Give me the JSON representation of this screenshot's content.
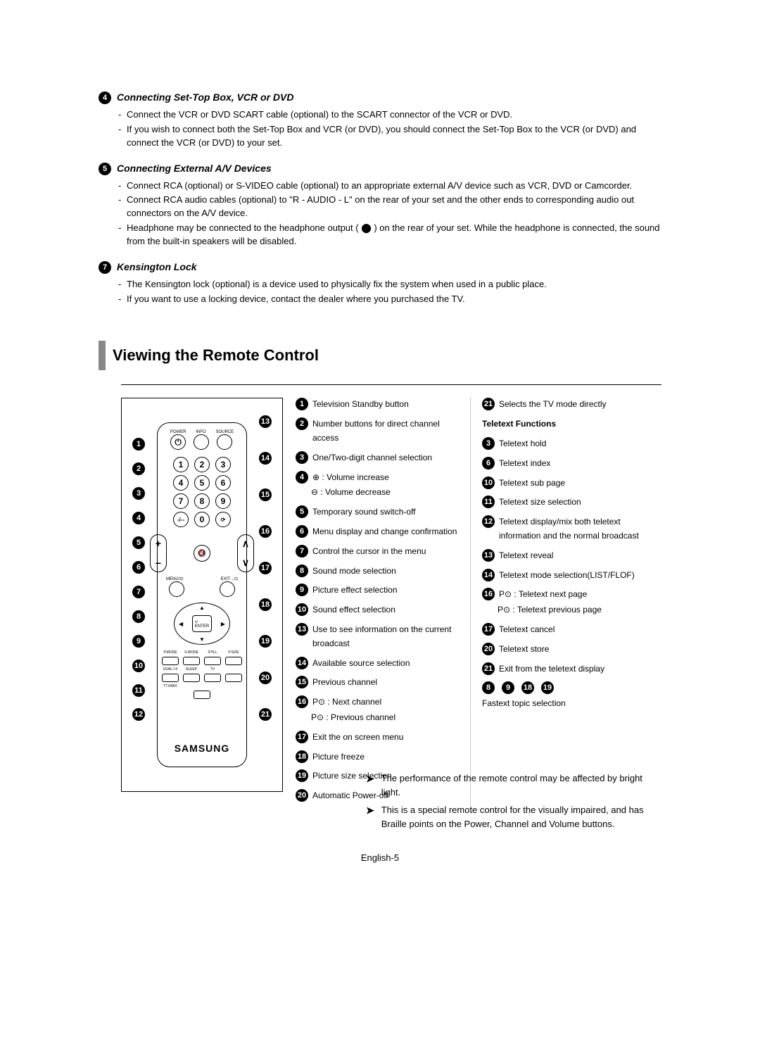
{
  "sections": [
    {
      "num": "4",
      "title": "Connecting Set-Top Box, VCR or DVD",
      "items": [
        "Connect the VCR or DVD SCART cable (optional) to the SCART connector of the VCR or DVD.",
        "If you wish to connect both the Set-Top Box and VCR (or DVD), you should connect the Set-Top Box to the VCR (or DVD) and connect the VCR (or DVD) to your set."
      ]
    },
    {
      "num": "5",
      "title": "Connecting External A/V Devices",
      "items": [
        "Connect RCA (optional) or S-VIDEO cable (optional) to an appropriate external A/V device such as VCR, DVD or Camcorder.",
        "Connect RCA audio cables (optional) to \"R - AUDIO - L\" on the rear of your set and the other ends to corresponding audio out connectors on the A/V device.",
        "Headphone may be connected to the headphone output ( ⬤ ) on the rear of your set. While the headphone is connected, the sound from the built-in speakers will be disabled."
      ]
    },
    {
      "num": "7",
      "title": "Kensington Lock",
      "items": [
        "The Kensington lock (optional) is a device used to physically fix the system when used in a public place.",
        "If you want to use a locking device, contact the dealer where you purchased the TV."
      ]
    }
  ],
  "heading": "Viewing the Remote Control",
  "remote": {
    "brand": "SAMSUNG",
    "left_callouts": [
      "1",
      "2",
      "3",
      "4",
      "5",
      "6",
      "7",
      "8",
      "9",
      "10",
      "11",
      "12"
    ],
    "right_callouts": [
      "13",
      "14",
      "15",
      "16",
      "17",
      "18",
      "19",
      "20",
      "21"
    ]
  },
  "col1": [
    {
      "n": "1",
      "t": "Television Standby button"
    },
    {
      "n": "2",
      "t": "Number buttons for direct channel access"
    },
    {
      "n": "3",
      "t": "One/Two-digit channel selection"
    },
    {
      "n": "4",
      "t": "⊕ : Volume increase",
      "sub": "⊖ : Volume decrease"
    },
    {
      "n": "5",
      "t": "Temporary sound switch-off"
    },
    {
      "n": "6",
      "t": "Menu display and  change confirmation"
    },
    {
      "n": "7",
      "t": "Control the cursor in the menu"
    },
    {
      "n": "8",
      "t": "Sound mode selection"
    },
    {
      "n": "9",
      "t": "Picture effect selection"
    },
    {
      "n": "10",
      "t": "Sound effect selection"
    },
    {
      "n": "13",
      "t": "Use to see information on the current broadcast"
    },
    {
      "n": "14",
      "t": "Available source selection"
    },
    {
      "n": "15",
      "t": "Previous channel"
    },
    {
      "n": "16",
      "t": "P⊙ : Next channel",
      "sub": "P⊙ : Previous channel"
    },
    {
      "n": "17",
      "t": "Exit the on screen menu"
    },
    {
      "n": "18",
      "t": "Picture freeze"
    },
    {
      "n": "19",
      "t": "Picture size selection"
    },
    {
      "n": "20",
      "t": "Automatic Power-off"
    }
  ],
  "col2_top": {
    "n": "21",
    "t": "Selects the TV mode directly"
  },
  "teletext_header": "Teletext Functions",
  "col2": [
    {
      "n": "3",
      "t": "Teletext hold"
    },
    {
      "n": "6",
      "t": "Teletext index"
    },
    {
      "n": "10",
      "t": "Teletext sub page"
    },
    {
      "n": "11",
      "t": "Teletext size selection"
    },
    {
      "n": "12",
      "t": "Teletext display/mix both teletext information and the normal broadcast"
    },
    {
      "n": "13",
      "t": "Teletext reveal"
    },
    {
      "n": "14",
      "t": "Teletext mode selection(LIST/FLOF)"
    },
    {
      "n": "16",
      "t": "P⊙ : Teletext next page",
      "sub": "P⊙ : Teletext previous page"
    },
    {
      "n": "17",
      "t": "Teletext cancel"
    },
    {
      "n": "20",
      "t": "Teletext store"
    },
    {
      "n": "21",
      "t": "Exit from the teletext display"
    }
  ],
  "fastext_icons": [
    "8",
    "9",
    "18",
    "19"
  ],
  "fastext_label": "Fastext topic selection",
  "footer": [
    "The performance of the remote control may be affected by bright light.",
    "This is a special remote control for the visually impaired, and has Braille points on the Power, Channel and Volume buttons."
  ],
  "pagenum": "English-5"
}
